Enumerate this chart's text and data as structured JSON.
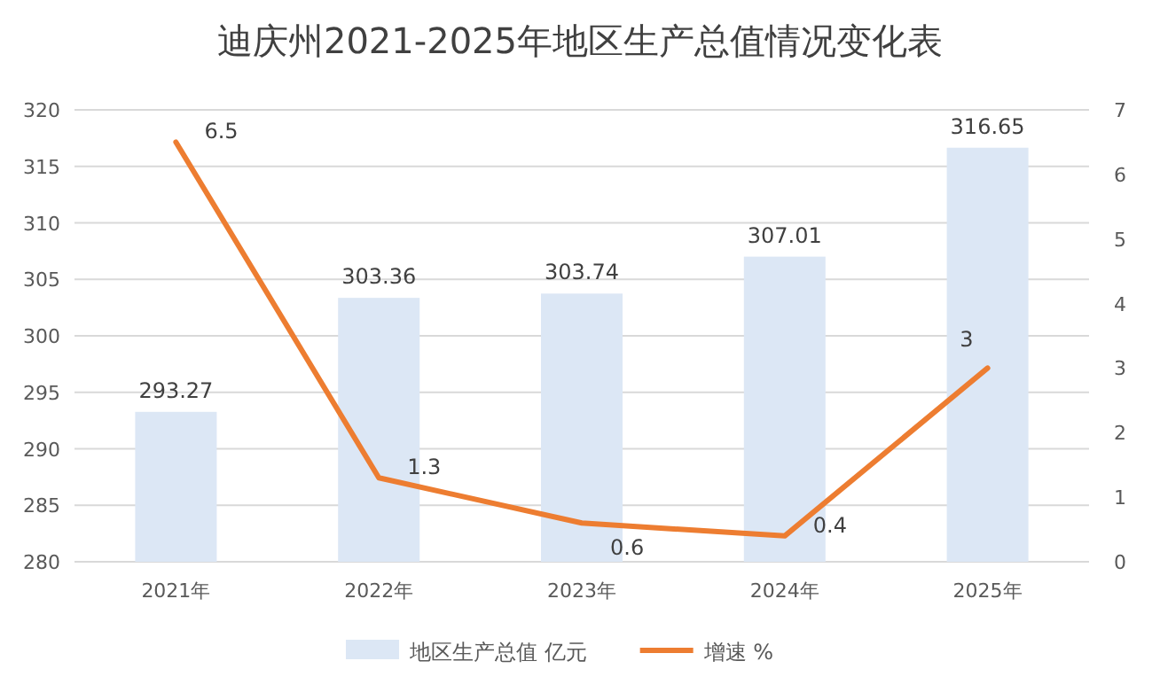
{
  "chart_data": {
    "type": "bar",
    "title": "迪庆州2021-2025年地区生产总值情况变化表",
    "categories": [
      "2021年",
      "2022年",
      "2023年",
      "2024年",
      "2025年"
    ],
    "series": [
      {
        "name": "地区生产总值 亿元",
        "color": "#dce7f5",
        "values": [
          293.27,
          303.36,
          303.74,
          307.01,
          316.65
        ]
      },
      {
        "name": "增速 %",
        "type": "line",
        "axis": "y2",
        "color": "#ed7d31",
        "values": [
          6.5,
          1.3,
          0.6,
          0.4,
          3
        ]
      }
    ],
    "ylim": [
      280,
      320
    ],
    "yticks": [
      280,
      285,
      290,
      295,
      300,
      305,
      310,
      315,
      320
    ],
    "y2lim": [
      0,
      7
    ],
    "y2ticks": [
      0,
      1,
      2,
      3,
      4,
      5,
      6,
      7
    ],
    "grid": "y",
    "legend": "bottom",
    "data_labels": true
  }
}
